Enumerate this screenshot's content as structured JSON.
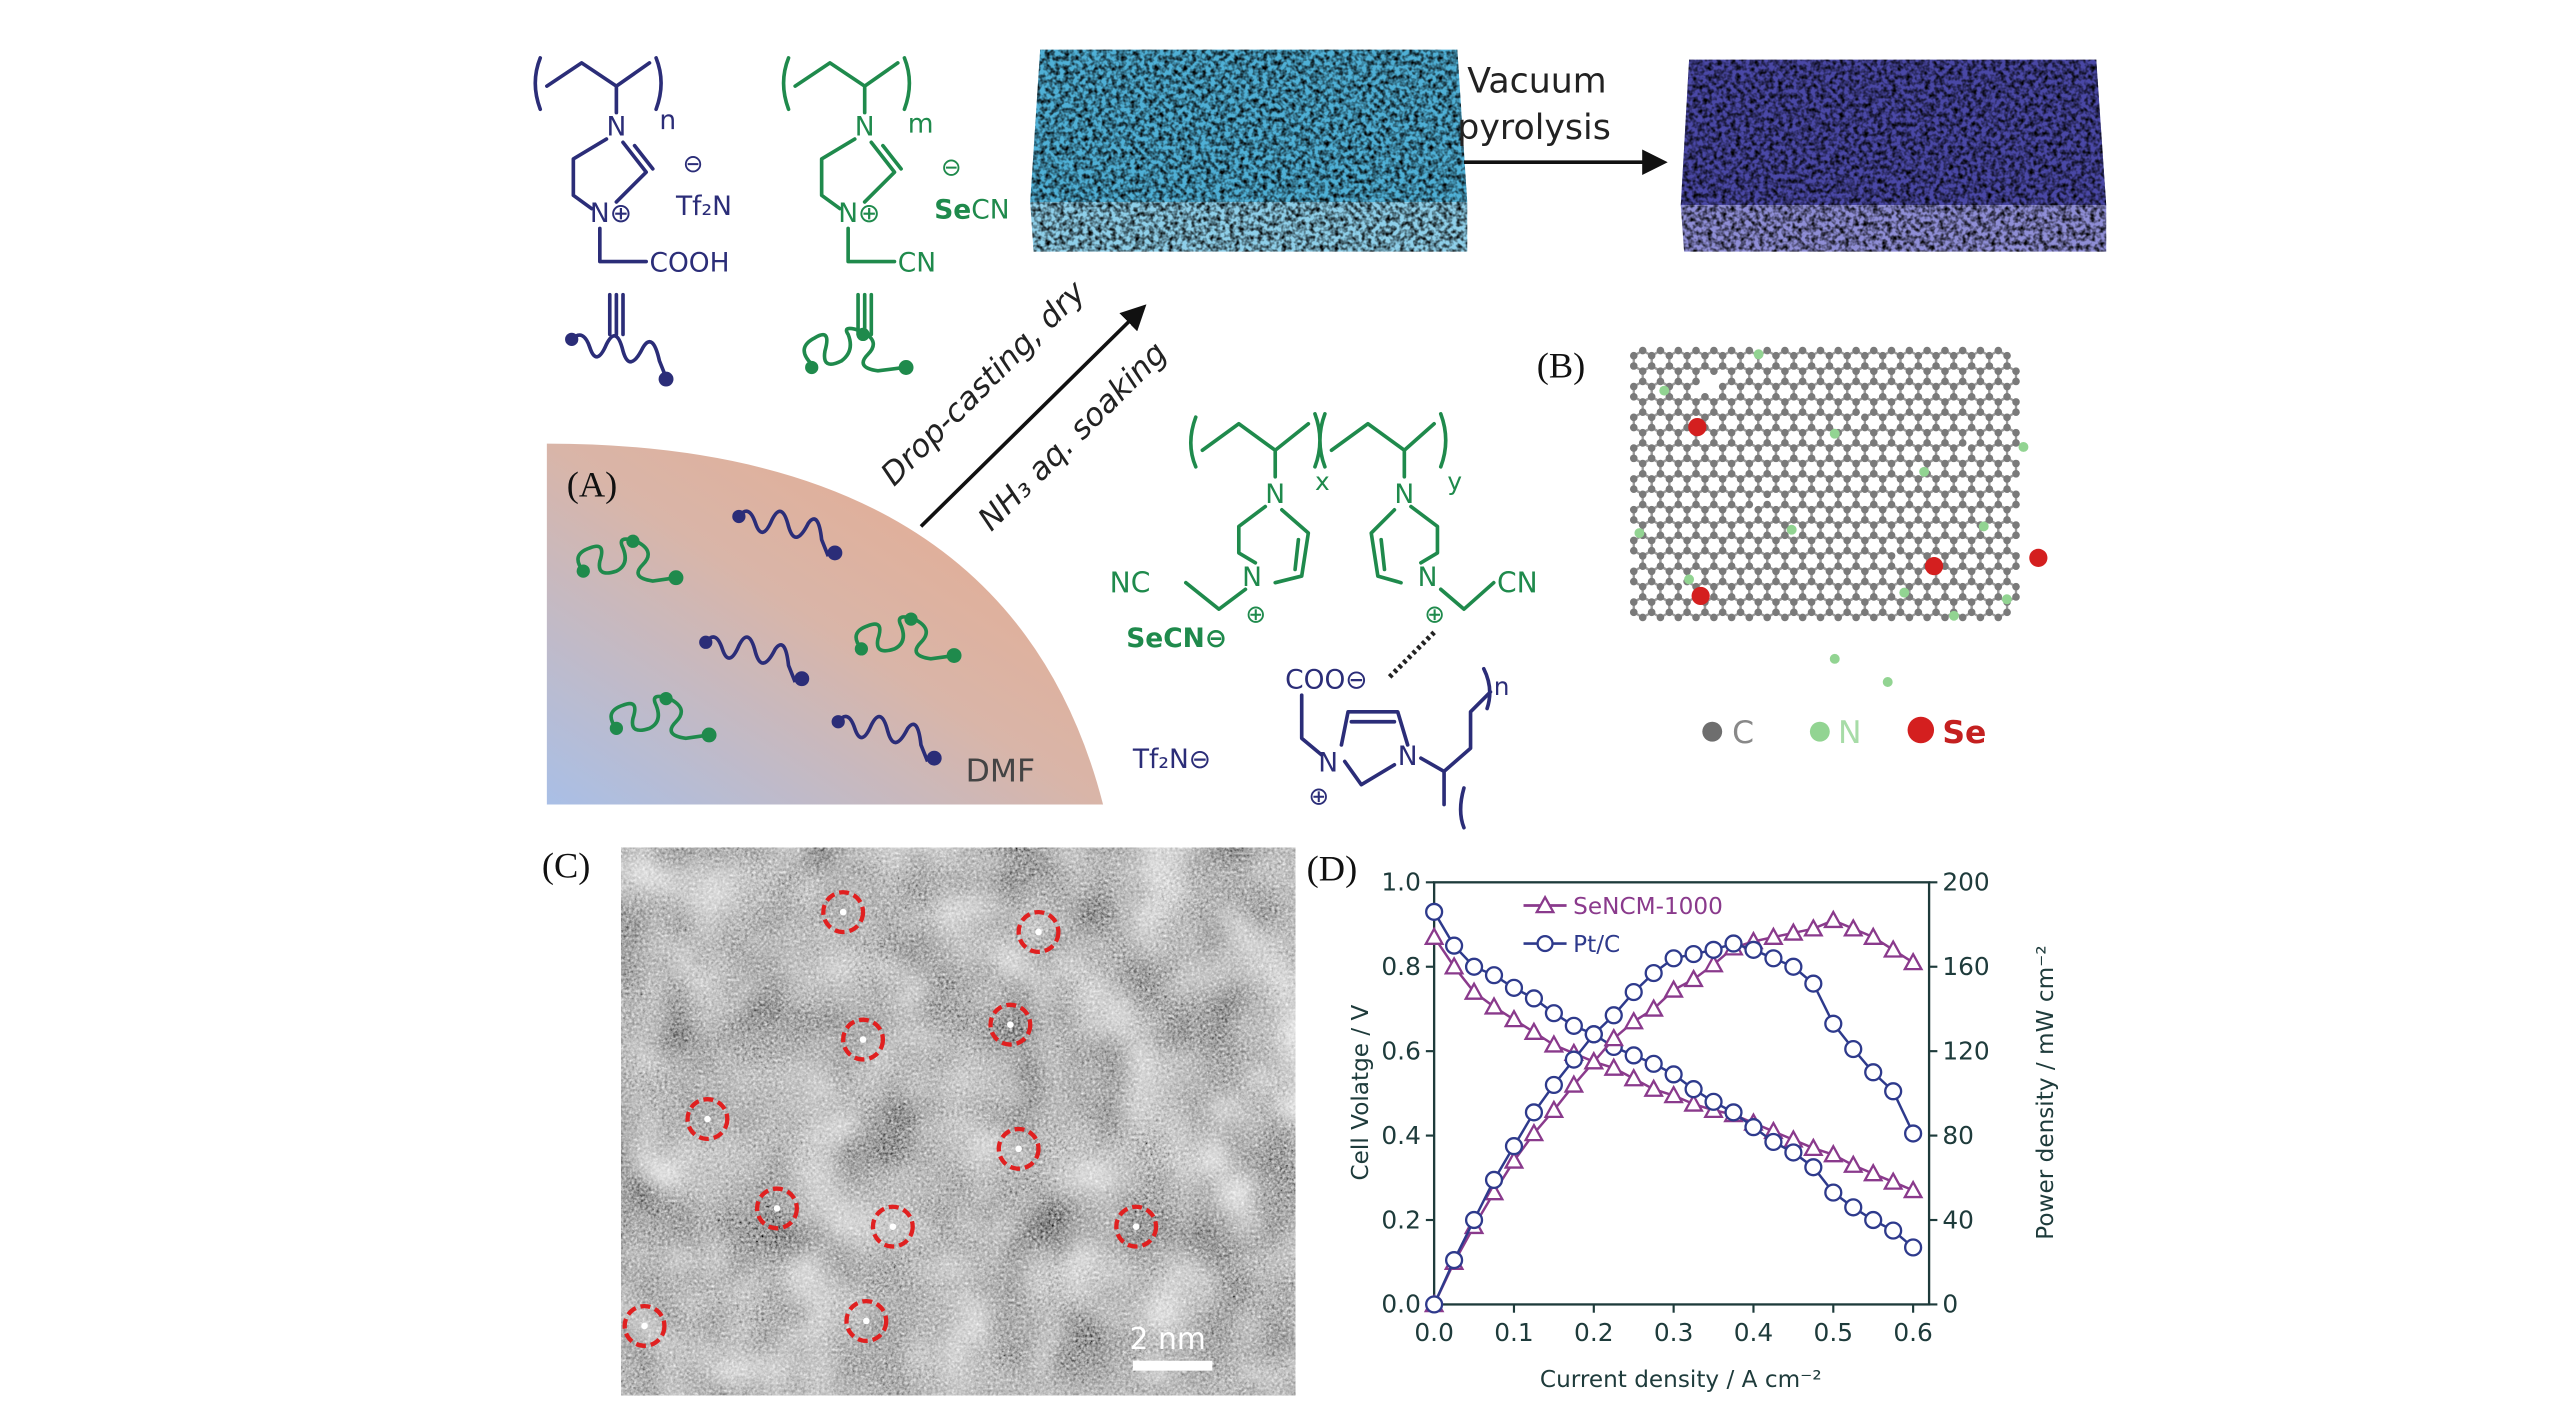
{
  "panel_labels": {
    "a": "(A)",
    "b": "(B)",
    "c": "(C)",
    "d": "(D)"
  },
  "colors": {
    "navy_polymer": "#2b2d78",
    "green_polymer": "#1f8a4c",
    "foam_before": "#4fb0d6",
    "foam_after": "#4a48a6",
    "carbon": "#7a7a7a",
    "nitrogen": "#92d492",
    "selenium": "#d41f1f",
    "highlight_circle": "#e02020"
  },
  "schematic": {
    "poly1": {
      "subscript": "n",
      "n_top": "N",
      "n_plus": "N⊕",
      "anion_charge": "⊖",
      "anion": "Tf₂N",
      "group": "COOH",
      "equiv": "|||"
    },
    "poly2": {
      "subscript": "m",
      "n_top": "N",
      "n_plus": "N⊕",
      "anion_charge": "⊖",
      "anion_se": "Se",
      "anion_rest": "CN",
      "group": "CN",
      "equiv": "|||"
    },
    "arrow1": {
      "line1": "Vacuum",
      "line2": "pyrolysis"
    },
    "arrow2": {
      "above": "Drop-casting, dry",
      "below": "NH₃ aq. soaking"
    },
    "solvent": "DMF",
    "copolymer": {
      "sub_x": "x",
      "sub_y": "y",
      "sub_n": "n",
      "n1": "N",
      "n2": "N",
      "n3": "N",
      "n4": "N",
      "left_group": "NC",
      "right_group": "CN",
      "plus": "⊕",
      "anion_se": "SeCN⊖",
      "carboxylate": "COO⊖",
      "tf2n": "Tf₂N⊖",
      "n5": "N",
      "n6": "N"
    }
  },
  "lattice_legend": [
    {
      "label": "C",
      "color": "#7a7a7a"
    },
    {
      "label": "N",
      "color": "#92d492"
    },
    {
      "label": "Se",
      "color": "#d41f1f"
    }
  ],
  "tem": {
    "scale_bar": "2 nm"
  },
  "chart_data": {
    "type": "line",
    "title": "",
    "xlabel": "Current density / A cm⁻²",
    "ylabel_left": "Cell Volatge / V",
    "ylabel_right": "Power density / mW cm⁻²",
    "xlim": [
      0,
      0.62
    ],
    "ylim_left": [
      0,
      1.0
    ],
    "ylim_right": [
      0,
      200
    ],
    "x_ticks": [
      "0.0",
      "0.1",
      "0.2",
      "0.3",
      "0.4",
      "0.5",
      "0.6"
    ],
    "y_left_ticks": [
      "0.0",
      "0.2",
      "0.4",
      "0.6",
      "0.8",
      "1.0"
    ],
    "y_right_ticks": [
      "0",
      "40",
      "80",
      "120",
      "160",
      "200"
    ],
    "grid": false,
    "legend_position": "top-left",
    "x": [
      0,
      0.025,
      0.05,
      0.075,
      0.1,
      0.125,
      0.15,
      0.175,
      0.2,
      0.225,
      0.25,
      0.275,
      0.3,
      0.325,
      0.35,
      0.375,
      0.4,
      0.425,
      0.45,
      0.475,
      0.5,
      0.525,
      0.55,
      0.575,
      0.6
    ],
    "series": [
      {
        "name": "SeNCM-1000",
        "axis": "left",
        "marker": "triangle",
        "color": "#8a3a8c",
        "values": [
          0.87,
          0.8,
          0.74,
          0.705,
          0.675,
          0.645,
          0.615,
          0.595,
          0.575,
          0.56,
          0.535,
          0.51,
          0.495,
          0.475,
          0.46,
          0.45,
          0.43,
          0.41,
          0.39,
          0.37,
          0.355,
          0.33,
          0.31,
          0.29,
          0.27
        ]
      },
      {
        "name": "Pt/C",
        "axis": "left",
        "marker": "circle",
        "color": "#2e3a8c",
        "values": [
          0.93,
          0.85,
          0.8,
          0.78,
          0.75,
          0.725,
          0.69,
          0.66,
          0.64,
          0.61,
          0.59,
          0.57,
          0.545,
          0.51,
          0.48,
          0.455,
          0.42,
          0.385,
          0.36,
          0.325,
          0.265,
          0.23,
          0.2,
          0.175,
          0.135
        ]
      },
      {
        "name": "SeNCM-1000",
        "axis": "right",
        "marker": "triangle",
        "color": "#8a3a8c",
        "values": [
          0,
          20,
          37,
          53,
          68,
          81,
          92,
          104,
          115,
          126,
          134,
          140,
          149,
          154,
          161,
          169,
          172,
          174,
          176,
          178,
          182,
          178,
          174,
          168,
          162
        ]
      },
      {
        "name": "Pt/C",
        "axis": "right",
        "marker": "circle",
        "color": "#2e3a8c",
        "values": [
          0,
          21,
          40,
          59,
          75,
          91,
          104,
          116,
          128,
          137,
          148,
          157,
          164,
          166,
          168,
          171,
          168,
          164,
          160,
          152,
          133,
          121,
          110,
          101,
          81
        ]
      }
    ],
    "legend": [
      "SeNCM-1000",
      "Pt/C"
    ]
  }
}
